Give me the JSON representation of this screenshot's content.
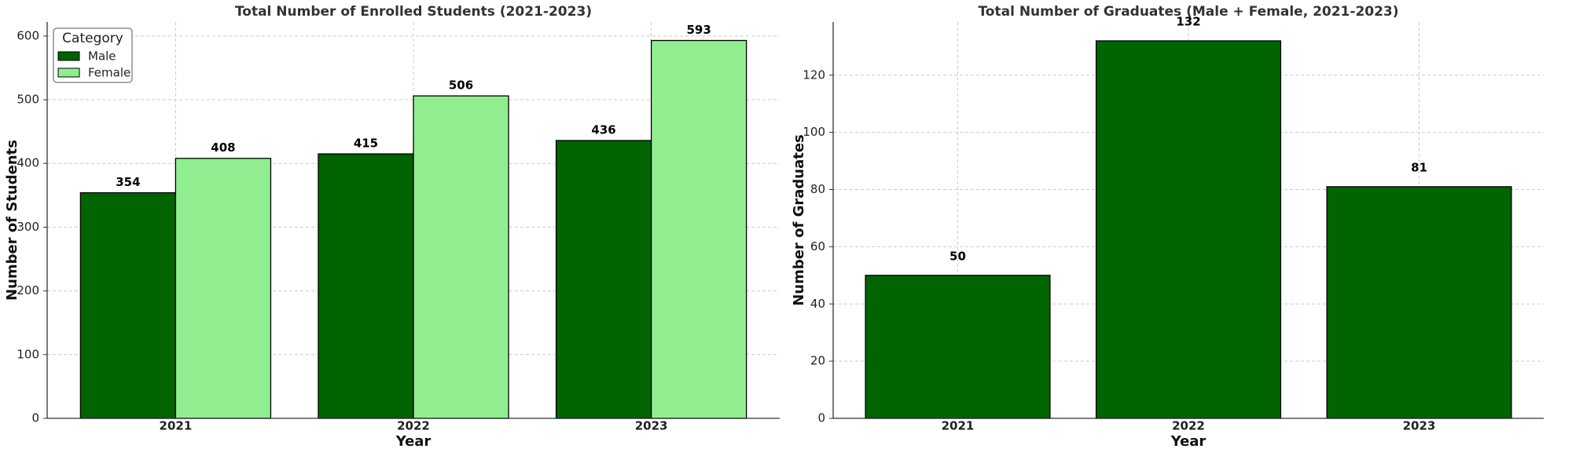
{
  "chart_data": [
    {
      "type": "bar",
      "title": "Total Number of Enrolled Students (2021-2023)",
      "xlabel": "Year",
      "ylabel": "Number of Students",
      "categories": [
        "2021",
        "2022",
        "2023"
      ],
      "series": [
        {
          "name": "Male",
          "color": "#006400",
          "values": [
            354,
            415,
            436
          ]
        },
        {
          "name": "Female",
          "color": "#90ee90",
          "values": [
            408,
            506,
            593
          ]
        }
      ],
      "ylim": [
        0,
        622
      ],
      "yticks": [
        0,
        100,
        200,
        300,
        400,
        500,
        600
      ],
      "grid": true,
      "legend": "upper left",
      "legend_title": "Category"
    },
    {
      "type": "bar",
      "title": "Total Number of Graduates (Male + Female, 2021-2023)",
      "xlabel": "Year",
      "ylabel": "Number of Graduates",
      "categories": [
        "2021",
        "2022",
        "2023"
      ],
      "values": [
        50,
        132,
        81
      ],
      "color": "#006400",
      "ylim": [
        0,
        138.6
      ],
      "yticks": [
        0,
        20,
        40,
        60,
        80,
        100,
        120
      ],
      "grid": true
    }
  ]
}
